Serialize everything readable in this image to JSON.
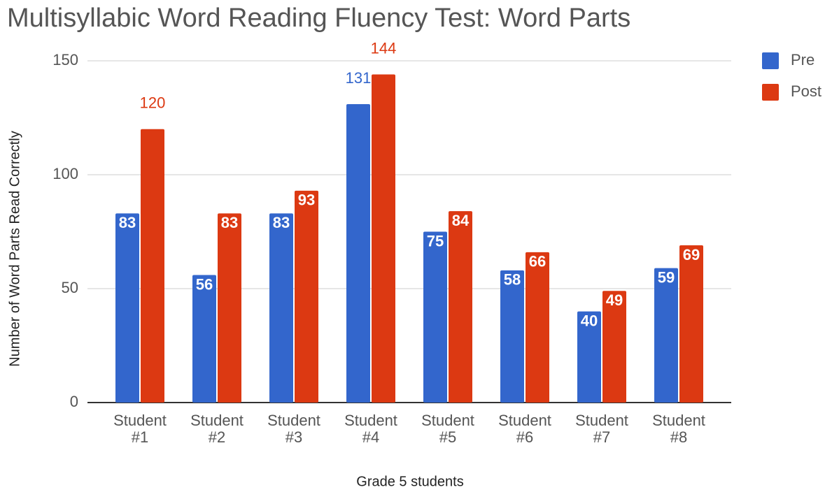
{
  "chart_data": {
    "type": "bar",
    "title": "Multisyllabic Word Reading Fluency Test: Word Parts",
    "x_label": "Grade 5 students",
    "y_label": "Number of Word Parts Read Correctly",
    "categories": [
      "Student #1",
      "Student #2",
      "Student #3",
      "Student #4",
      "Student #5",
      "Student #6",
      "Student #7",
      "Student #8"
    ],
    "series": [
      {
        "name": "Pre",
        "color": "#3366cc",
        "values": [
          83,
          56,
          83,
          131,
          75,
          58,
          40,
          59
        ]
      },
      {
        "name": "Post",
        "color": "#dc3912",
        "values": [
          120,
          83,
          93,
          144,
          84,
          66,
          49,
          69
        ]
      }
    ],
    "ylim": [
      0,
      150
    ],
    "yticks": [
      0,
      50,
      100,
      150
    ],
    "grid": true,
    "legend": "right"
  }
}
